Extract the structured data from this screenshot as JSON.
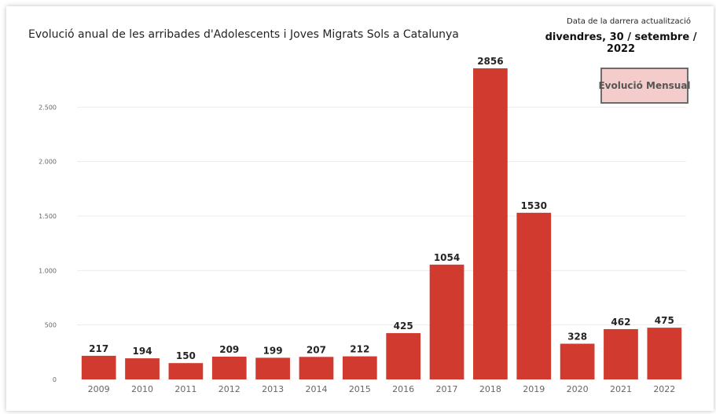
{
  "header": {
    "title": "Evolució anual de les arribades d'Adolescents i Joves Migrats Sols a Catalunya",
    "update_label": "Data de la darrera actualització",
    "update_date": "divendres, 30 / setembre / 2022"
  },
  "controls": {
    "monthly_button_label": "Evolució Mensual"
  },
  "colors": {
    "bar": "#d13a2f",
    "button_bg": "#f5cccc",
    "grid": "#ececec"
  },
  "chart_data": {
    "type": "bar",
    "categories": [
      "2009",
      "2010",
      "2011",
      "2012",
      "2013",
      "2014",
      "2015",
      "2016",
      "2017",
      "2018",
      "2019",
      "2020",
      "2021",
      "2022"
    ],
    "values": [
      217,
      194,
      150,
      209,
      199,
      207,
      212,
      425,
      1054,
      2856,
      1530,
      328,
      462,
      475
    ],
    "ylim": [
      0,
      3000
    ],
    "yticks": [
      0,
      500,
      1000,
      1500,
      2000,
      2500
    ],
    "ytick_labels": [
      "0",
      "500",
      "1.000",
      "1.500",
      "2.000",
      "2.500"
    ],
    "grid": true,
    "data_labels": true
  }
}
